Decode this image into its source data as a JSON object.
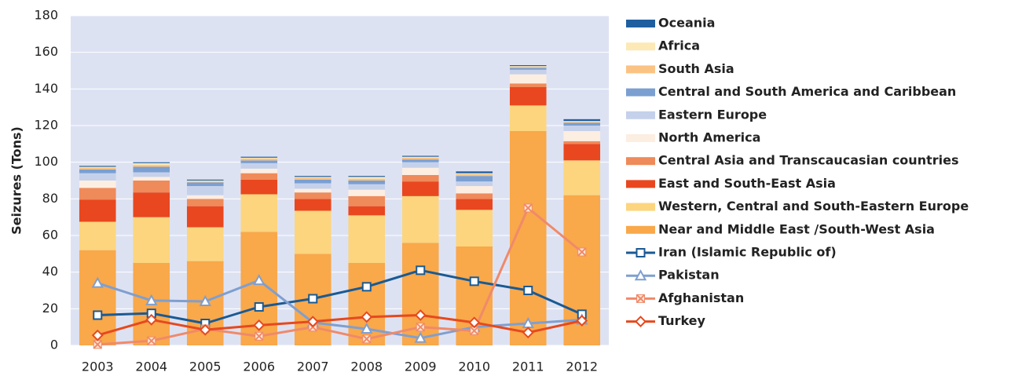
{
  "chart_data": {
    "type": "bar",
    "y_label": "Seizures (Tons)",
    "categories": [
      "2003",
      "2004",
      "2005",
      "2006",
      "2007",
      "2008",
      "2009",
      "2010",
      "2011",
      "2012"
    ],
    "ylim": [
      0,
      180
    ],
    "yticks": [
      0,
      20,
      40,
      60,
      80,
      100,
      120,
      140,
      160,
      180
    ],
    "grid": true,
    "series": [
      {
        "name": "Oceania",
        "type": "bar",
        "color": "#1f5fa0",
        "values": [
          0.5,
          0.5,
          0.5,
          0.5,
          0.5,
          0.5,
          0.5,
          1,
          0.5,
          1
        ]
      },
      {
        "name": "Africa",
        "type": "bar",
        "color": "#fde9b5",
        "values": [
          0.5,
          1,
          0.5,
          0.5,
          0.5,
          1,
          0.5,
          0.5,
          0.5,
          0.5
        ]
      },
      {
        "name": "South Asia",
        "type": "bar",
        "color": "#fbc383",
        "values": [
          1,
          1,
          0.5,
          1,
          1,
          1,
          1,
          1,
          0.5,
          0.5
        ]
      },
      {
        "name": "Central and South America and Caribbean",
        "type": "bar",
        "color": "#7b9fd1",
        "values": [
          2,
          3,
          2,
          1.5,
          2,
          2,
          1.5,
          3,
          1,
          1.5
        ]
      },
      {
        "name": "Eastern Europe",
        "type": "bar",
        "color": "#c5d1eb",
        "values": [
          4,
          2.5,
          5,
          3,
          3,
          3,
          3,
          2.5,
          2.5,
          3
        ]
      },
      {
        "name": "North America",
        "type": "bar",
        "color": "#fdeee2",
        "values": [
          4,
          2,
          2,
          2.5,
          2,
          3.5,
          4,
          4,
          5,
          5.5
        ]
      },
      {
        "name": "Central Asia and Transcaucasian countries",
        "type": "bar",
        "color": "#ef8a5a",
        "values": [
          6.5,
          6.5,
          4,
          3.5,
          3.5,
          5.5,
          3.5,
          3,
          2,
          1.5
        ]
      },
      {
        "name": "East and South-East Asia",
        "type": "bar",
        "color": "#e9471f",
        "values": [
          12,
          13.5,
          11.5,
          8,
          6.5,
          5,
          8,
          6,
          10,
          9
        ]
      },
      {
        "name": "Western, Central and South-Eastern Europe",
        "type": "bar",
        "color": "#fcd57e",
        "values": [
          15.5,
          25,
          18.5,
          20.5,
          23.5,
          26,
          25.5,
          20,
          14,
          19
        ]
      },
      {
        "name": "Near and Middle East /South-West Asia",
        "type": "bar",
        "color": "#f9a84a",
        "values": [
          52,
          45,
          46,
          62,
          50,
          45,
          56,
          54,
          117,
          82
        ]
      },
      {
        "name": "Iran (Islamic Republic of)",
        "type": "line",
        "marker": "square",
        "color": "#1a5a93",
        "values": [
          16.5,
          17.5,
          12,
          21,
          25.5,
          32,
          41,
          35,
          30,
          17
        ]
      },
      {
        "name": "Pakistan",
        "type": "line",
        "marker": "triangle",
        "color": "#7f9fcf",
        "values": [
          34,
          24.5,
          24,
          35.5,
          12.5,
          9,
          4,
          10,
          12,
          14
        ]
      },
      {
        "name": "Afghanistan",
        "type": "line",
        "marker": "cross",
        "color": "#ef8a6a",
        "values": [
          0.5,
          2.5,
          9,
          5,
          10,
          3.5,
          10,
          8,
          75,
          51
        ]
      },
      {
        "name": "Turkey",
        "type": "line",
        "marker": "diamond",
        "color": "#e6491e",
        "values": [
          5.5,
          14,
          8.5,
          11,
          13,
          15.5,
          16.5,
          12.5,
          7,
          13.5
        ]
      }
    ]
  }
}
